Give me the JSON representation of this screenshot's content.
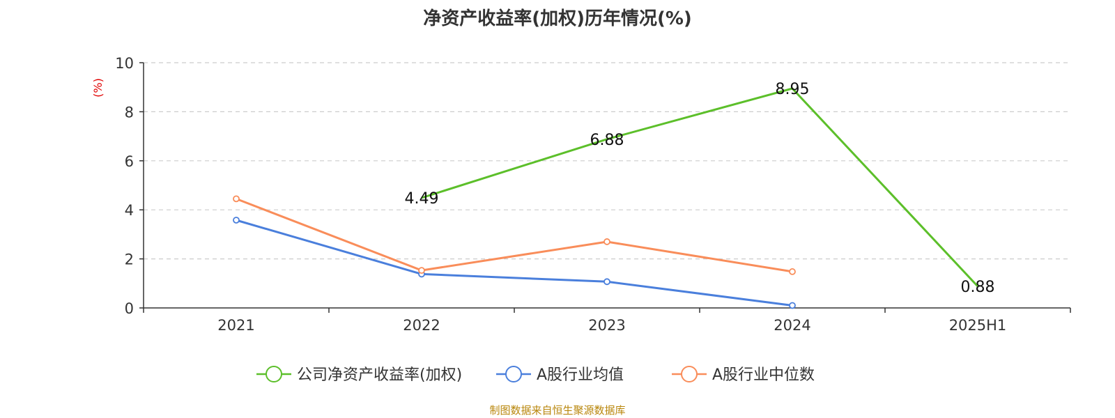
{
  "chart_data": {
    "type": "line",
    "title": "净资产收益率(加权)历年情况(%)",
    "ylabel": "(%)",
    "ylim": [
      0,
      10
    ],
    "yticks": [
      0,
      2,
      4,
      6,
      8,
      10
    ],
    "categories": [
      "2021",
      "2022",
      "2023",
      "2024",
      "2025H1"
    ],
    "grid": true,
    "legend_position": "bottom",
    "series": [
      {
        "name": "公司净资产收益率(加权)",
        "color": "#5cbf2a",
        "values": [
          null,
          4.49,
          6.88,
          8.95,
          0.88
        ],
        "labels": [
          "",
          "4.49",
          "6.88",
          "8.95",
          "0.88"
        ]
      },
      {
        "name": "A股行业均值",
        "color": "#4a7fdc",
        "values": [
          3.58,
          1.38,
          1.07,
          0.1,
          null
        ]
      },
      {
        "name": "A股行业中位数",
        "color": "#f98d5a",
        "values": [
          4.45,
          1.53,
          2.7,
          1.48,
          null
        ]
      }
    ]
  },
  "source": "制图数据来自恒生聚源数据库"
}
